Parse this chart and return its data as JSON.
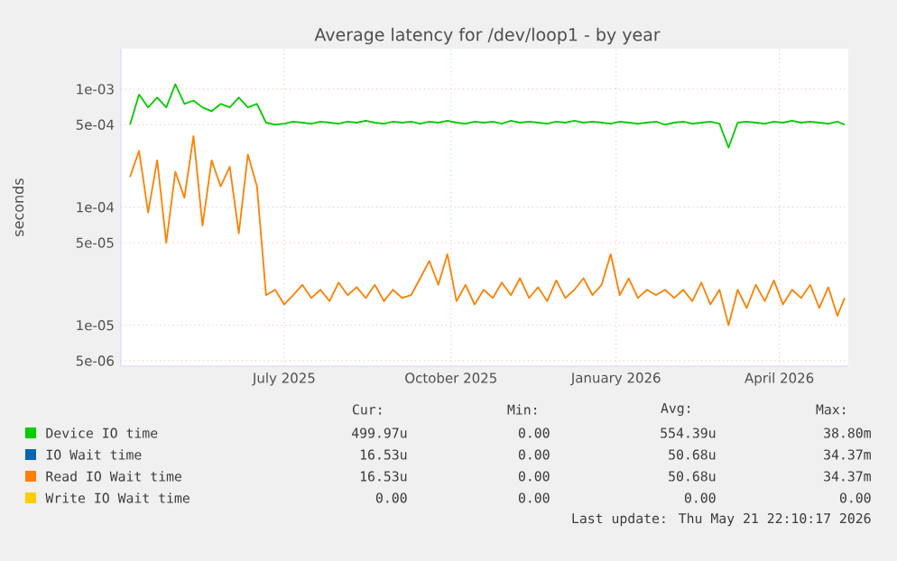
{
  "chart_data": {
    "type": "line",
    "title": "Average latency for /dev/loop1 - by year",
    "ylabel": "seconds",
    "log": "y",
    "grid": true,
    "legend": "bottom",
    "marker": "none",
    "line_style": "solid",
    "xlim": [
      "2025-04-17",
      "2026-05-23"
    ],
    "xticks": [
      {
        "value": "2025-07-16",
        "label": "July 2025"
      },
      {
        "value": "2025-10-16",
        "label": "October 2025"
      },
      {
        "value": "2026-01-15",
        "label": "January 2026"
      },
      {
        "value": "2026-04-15",
        "label": "April 2026"
      }
    ],
    "ylim": [
      4.5e-06,
      0.0022
    ],
    "yticks": [
      {
        "value": 5e-06,
        "label": "5e-06"
      },
      {
        "value": 1e-05,
        "label": "1e-05"
      },
      {
        "value": 5e-05,
        "label": "5e-05"
      },
      {
        "value": 0.0001,
        "label": "1e-04"
      },
      {
        "value": 0.0005,
        "label": "5e-04"
      },
      {
        "value": 0.001,
        "label": "1e-03"
      }
    ],
    "x": [
      "2025-04-22",
      "2025-04-27",
      "2025-05-02",
      "2025-05-07",
      "2025-05-12",
      "2025-05-17",
      "2025-05-22",
      "2025-05-27",
      "2025-06-01",
      "2025-06-06",
      "2025-06-11",
      "2025-06-16",
      "2025-06-21",
      "2025-06-26",
      "2025-07-01",
      "2025-07-06",
      "2025-07-11",
      "2025-07-16",
      "2025-07-21",
      "2025-07-26",
      "2025-07-31",
      "2025-08-05",
      "2025-08-10",
      "2025-08-15",
      "2025-08-20",
      "2025-08-25",
      "2025-08-30",
      "2025-09-04",
      "2025-09-09",
      "2025-09-14",
      "2025-09-19",
      "2025-09-24",
      "2025-09-29",
      "2025-10-04",
      "2025-10-09",
      "2025-10-14",
      "2025-10-19",
      "2025-10-24",
      "2025-10-29",
      "2025-11-03",
      "2025-11-08",
      "2025-11-13",
      "2025-11-18",
      "2025-11-23",
      "2025-11-28",
      "2025-12-03",
      "2025-12-08",
      "2025-12-13",
      "2025-12-18",
      "2025-12-23",
      "2025-12-28",
      "2026-01-02",
      "2026-01-07",
      "2026-01-12",
      "2026-01-17",
      "2026-01-22",
      "2026-01-27",
      "2026-02-01",
      "2026-02-06",
      "2026-02-11",
      "2026-02-16",
      "2026-02-21",
      "2026-02-26",
      "2026-03-03",
      "2026-03-08",
      "2026-03-13",
      "2026-03-18",
      "2026-03-23",
      "2026-03-28",
      "2026-04-02",
      "2026-04-07",
      "2026-04-12",
      "2026-04-17",
      "2026-04-22",
      "2026-04-27",
      "2026-05-02",
      "2026-05-07",
      "2026-05-12",
      "2026-05-17",
      "2026-05-21"
    ],
    "series": [
      {
        "name": "Device IO time",
        "color": "#00cc00",
        "values": [
          0.0005,
          0.0009,
          0.0007,
          0.00085,
          0.0007,
          0.0011,
          0.00075,
          0.0008,
          0.0007,
          0.00065,
          0.00075,
          0.0007,
          0.00085,
          0.0007,
          0.00075,
          0.00052,
          0.0005,
          0.00051,
          0.00053,
          0.00052,
          0.00051,
          0.00053,
          0.00052,
          0.00051,
          0.00053,
          0.00052,
          0.00054,
          0.00052,
          0.00051,
          0.00053,
          0.00052,
          0.00053,
          0.00051,
          0.00053,
          0.00052,
          0.00054,
          0.00052,
          0.00051,
          0.00053,
          0.00052,
          0.00053,
          0.00051,
          0.00054,
          0.00052,
          0.00053,
          0.00052,
          0.00051,
          0.00053,
          0.00052,
          0.00054,
          0.00052,
          0.00053,
          0.00052,
          0.00051,
          0.00053,
          0.00052,
          0.00051,
          0.00052,
          0.00053,
          0.0005,
          0.00052,
          0.00053,
          0.00051,
          0.00052,
          0.00053,
          0.00051,
          0.00032,
          0.00052,
          0.00053,
          0.00052,
          0.00051,
          0.00053,
          0.00052,
          0.00054,
          0.00052,
          0.00053,
          0.00052,
          0.00051,
          0.00053,
          0.0005
        ]
      },
      {
        "name": "IO Wait time",
        "color": "#0066b3",
        "values": [
          null,
          null,
          null,
          null,
          null,
          null,
          null,
          null,
          null,
          null,
          null,
          null,
          null,
          null,
          null,
          null,
          null,
          null,
          null,
          null,
          null,
          null,
          null,
          null,
          null,
          null,
          null,
          null,
          null,
          null,
          null,
          null,
          null,
          null,
          null,
          null,
          null,
          null,
          null,
          null,
          null,
          null,
          null,
          null,
          null,
          null,
          null,
          null,
          null,
          null,
          null,
          null,
          null,
          null,
          null,
          null,
          null,
          null,
          null,
          null,
          null,
          null,
          null,
          null,
          null,
          null,
          null,
          null,
          null,
          null,
          null,
          null,
          null,
          null,
          null,
          null,
          null,
          null,
          null,
          null
        ]
      },
      {
        "name": "Read IO Wait time",
        "color": "#ff8000",
        "values": [
          0.00018,
          0.0003,
          9e-05,
          0.00025,
          5e-05,
          0.0002,
          0.00012,
          0.0004,
          7e-05,
          0.00025,
          0.00015,
          0.00022,
          6e-05,
          0.00028,
          0.00015,
          1.8e-05,
          2e-05,
          1.5e-05,
          1.8e-05,
          2.2e-05,
          1.7e-05,
          2e-05,
          1.6e-05,
          2.3e-05,
          1.8e-05,
          2.1e-05,
          1.7e-05,
          2.2e-05,
          1.6e-05,
          2e-05,
          1.7e-05,
          1.8e-05,
          2.5e-05,
          3.5e-05,
          2.2e-05,
          4e-05,
          1.6e-05,
          2.2e-05,
          1.5e-05,
          2e-05,
          1.7e-05,
          2.3e-05,
          1.8e-05,
          2.5e-05,
          1.7e-05,
          2.1e-05,
          1.6e-05,
          2.4e-05,
          1.7e-05,
          2e-05,
          2.5e-05,
          1.8e-05,
          2.2e-05,
          4e-05,
          1.8e-05,
          2.5e-05,
          1.7e-05,
          2e-05,
          1.8e-05,
          2e-05,
          1.7e-05,
          2e-05,
          1.6e-05,
          2.3e-05,
          1.5e-05,
          2e-05,
          1e-05,
          2e-05,
          1.4e-05,
          2.2e-05,
          1.6e-05,
          2.4e-05,
          1.5e-05,
          2e-05,
          1.7e-05,
          2.2e-05,
          1.4e-05,
          2.1e-05,
          1.2e-05,
          1.7e-05
        ]
      },
      {
        "name": "Write IO Wait time",
        "color": "#ffcc00",
        "values": [
          null,
          null,
          null,
          null,
          null,
          null,
          null,
          null,
          null,
          null,
          null,
          null,
          null,
          null,
          null,
          null,
          null,
          null,
          null,
          null,
          null,
          null,
          null,
          null,
          null,
          null,
          null,
          null,
          null,
          null,
          null,
          null,
          null,
          null,
          null,
          null,
          null,
          null,
          null,
          null,
          null,
          null,
          null,
          null,
          null,
          null,
          null,
          null,
          null,
          null,
          null,
          null,
          null,
          null,
          null,
          null,
          null,
          null,
          null,
          null,
          null,
          null,
          null,
          null,
          null,
          null,
          null,
          null,
          null,
          null,
          null,
          null,
          null,
          null,
          null,
          null,
          null,
          null,
          null,
          null
        ]
      }
    ],
    "annotations": [
      "Cur:",
      "Min:",
      "Avg:",
      "Max:",
      "499.97u",
      "0.00",
      "554.39u",
      "38.80m",
      "16.53u",
      "0.00",
      "50.68u",
      "34.37m",
      "16.53u",
      "0.00",
      "50.68u",
      "34.37m",
      "0.00",
      "0.00",
      "0.00",
      "0.00",
      "Last update: Thu May 21 22:10:17 2026"
    ]
  }
}
